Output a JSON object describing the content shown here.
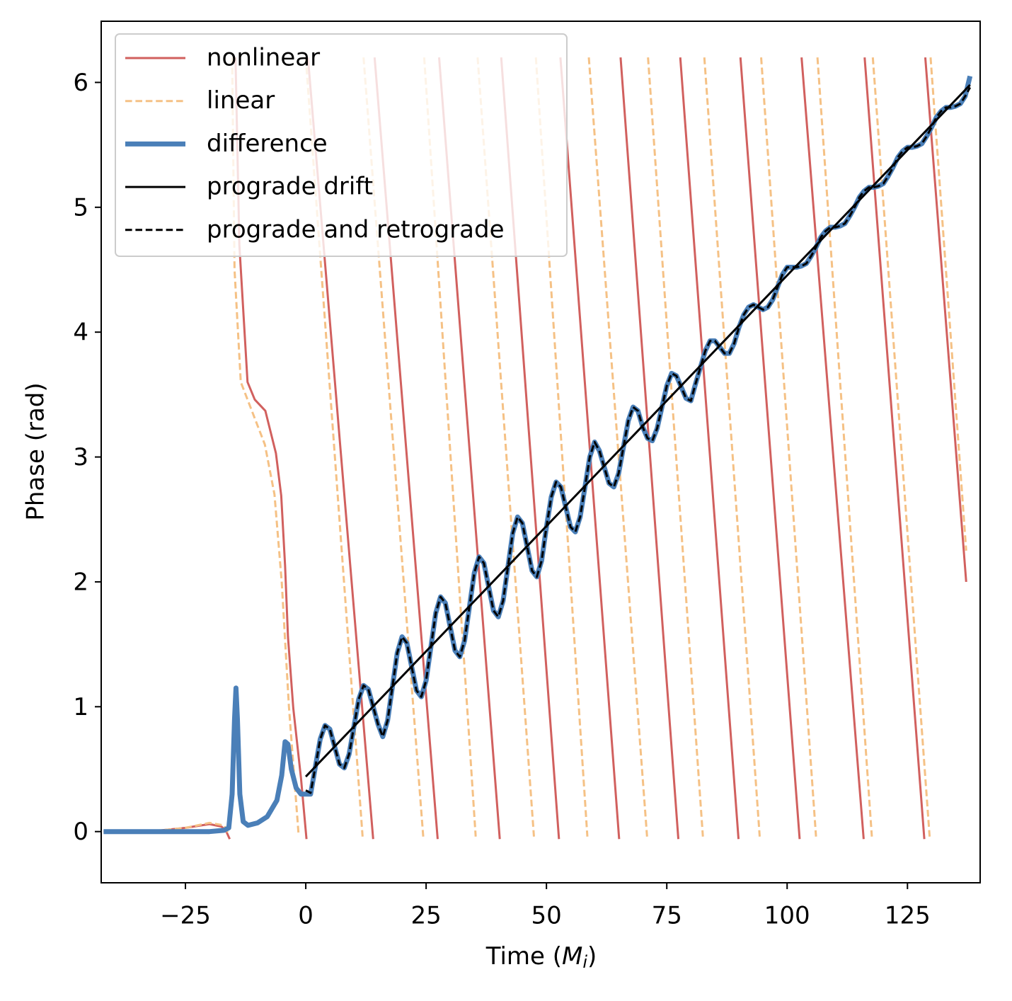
{
  "chart_data": {
    "type": "line",
    "x_label": [
      "Time (",
      "M",
      "i",
      ")"
    ],
    "y_label": "Phase (rad)",
    "xlim": [
      -42.5,
      140.1
    ],
    "ylim": [
      -0.41,
      6.49
    ],
    "xticks": [
      {
        "value": -25,
        "label": "−25"
      },
      0,
      25,
      50,
      75,
      100,
      125
    ],
    "yticks": [
      0,
      1,
      2,
      3,
      4,
      5,
      6
    ],
    "grid": false,
    "legend": "upper left",
    "series": [
      {
        "name": "nonlinear",
        "color": "#d1605e",
        "linestyle": "solid",
        "x": [
          -42,
          -30,
          -25,
          -20,
          -17.5,
          -16.5,
          -15.8,
          -15.2,
          -14.6,
          -13.8,
          -12.1,
          -10.6,
          -8.4,
          -6.2,
          -5.1,
          -4.3,
          -3.7,
          -2.6,
          -1.0,
          0.15,
          0.3,
          0.45,
          7.2,
          14.0,
          14.15,
          14.3,
          20.85,
          27.4,
          27.55,
          27.7,
          34.0,
          40.3,
          40.45,
          40.6,
          46.6,
          52.6,
          52.75,
          52.9,
          59.0,
          65.1,
          65.25,
          65.4,
          71.4,
          77.4,
          77.6,
          77.8,
          83.85,
          89.9,
          90.1,
          90.3,
          96.45,
          102.6,
          102.8,
          103.0,
          109.45,
          115.9,
          116.0,
          116.1,
          122.3,
          128.5,
          128.6,
          128.7,
          137.2
        ],
        "values": [
          0,
          0.01,
          0.03,
          0.06,
          0.04,
          0.0,
          -0.06,
          null,
          6.2,
          4.7,
          3.6,
          3.46,
          3.37,
          3.03,
          2.69,
          2.13,
          1.56,
          0.99,
          0.43,
          -0.06,
          null,
          6.2,
          3.07,
          -0.06,
          null,
          6.2,
          3.07,
          -0.06,
          null,
          6.2,
          3.07,
          -0.06,
          null,
          6.2,
          3.07,
          -0.06,
          null,
          6.2,
          3.07,
          -0.06,
          null,
          6.2,
          3.07,
          -0.06,
          null,
          6.2,
          3.07,
          -0.06,
          null,
          6.2,
          3.07,
          -0.06,
          null,
          6.2,
          3.07,
          -0.06,
          null,
          6.2,
          3.07,
          -0.06,
          null,
          6.2,
          2.0
        ]
      },
      {
        "name": "linear",
        "color": "#f5c185",
        "linestyle": "dashed",
        "x": [
          -42,
          -30,
          -25,
          -20,
          -17,
          -16,
          -15.5,
          -15.3,
          -14.8,
          -13.5,
          -11.5,
          -8.5,
          -6.5,
          -5.0,
          -3.5,
          -1.5,
          -1.1,
          0,
          5.9,
          11.8,
          11.9,
          12.0,
          18.2,
          24.4,
          24.5,
          24.6,
          29.95,
          35.3,
          35.5,
          35.7,
          41.55,
          47.4,
          47.6,
          47.8,
          53.15,
          58.5,
          58.65,
          58.8,
          64.85,
          70.9,
          71.0,
          71.1,
          76.8,
          82.5,
          82.65,
          82.8,
          88.55,
          94.3,
          94.45,
          94.6,
          100.3,
          106.0,
          106.15,
          106.3,
          111.95,
          117.6,
          117.7,
          117.8,
          123.7,
          129.6,
          129.7,
          129.8,
          137.2
        ],
        "values": [
          0,
          0.01,
          0.03,
          0.07,
          0.05,
          -0.02,
          null,
          6.2,
          4.5,
          3.6,
          3.4,
          3.1,
          2.7,
          2.0,
          1.0,
          -0.02,
          null,
          6.2,
          3.08,
          -0.04,
          null,
          6.2,
          3.08,
          -0.04,
          null,
          6.2,
          3.08,
          -0.04,
          null,
          6.2,
          3.08,
          -0.04,
          null,
          6.2,
          3.08,
          -0.04,
          null,
          6.2,
          3.08,
          -0.04,
          null,
          6.2,
          3.08,
          -0.04,
          null,
          6.2,
          3.08,
          -0.04,
          null,
          6.2,
          3.08,
          -0.04,
          null,
          6.2,
          3.08,
          -0.04,
          null,
          6.2,
          3.08,
          -0.04,
          null,
          6.2,
          2.25
        ]
      },
      {
        "name": "difference",
        "color": "#4a7fb8",
        "linestyle": "solid",
        "x": [
          -42,
          -20,
          -17,
          -16,
          -15.3,
          -14.8,
          -14.5,
          -14.2,
          -13.7,
          -13,
          -12,
          -10,
          -8,
          -6,
          -5,
          -4.3,
          -3.7,
          -3,
          -2,
          -1,
          0,
          1,
          2,
          3,
          4,
          5,
          6,
          7,
          8,
          9,
          10,
          11,
          12,
          13,
          14,
          15,
          16,
          17,
          18,
          19,
          20,
          21,
          22,
          23,
          24,
          25,
          26,
          27,
          28,
          29,
          30,
          31,
          32,
          33,
          34,
          35,
          36,
          37,
          38,
          39,
          40,
          41,
          42,
          43,
          44,
          45,
          46,
          47,
          48,
          49,
          50,
          51,
          52,
          53,
          54,
          55,
          56,
          57,
          58,
          59,
          60,
          61,
          62,
          63,
          64,
          65,
          66,
          67,
          68,
          69,
          70,
          71,
          72,
          73,
          74,
          75,
          76,
          77,
          78,
          79,
          80,
          81,
          82,
          83,
          84,
          85,
          86,
          87,
          88,
          89,
          90,
          91,
          92,
          93,
          94,
          95,
          96,
          97,
          98,
          99,
          100,
          101,
          102,
          103,
          104,
          105,
          106,
          107,
          108,
          109,
          110,
          111,
          112,
          113,
          114,
          115,
          116,
          117,
          118,
          119,
          120,
          121,
          122,
          123,
          124,
          125,
          126,
          127,
          128,
          129,
          130,
          131,
          132,
          133,
          134,
          135,
          136,
          137,
          138
        ],
        "values": [
          0,
          0,
          0.01,
          0.03,
          0.3,
          0.9,
          1.15,
          0.9,
          0.3,
          0.08,
          0.05,
          0.07,
          0.12,
          0.25,
          0.45,
          0.72,
          0.7,
          0.5,
          0.35,
          0.3,
          0.3,
          0.3,
          0.52,
          0.74,
          0.85,
          0.82,
          0.68,
          0.54,
          0.51,
          0.62,
          0.84,
          1.06,
          1.17,
          1.14,
          1.0,
          0.86,
          0.76,
          0.89,
          1.16,
          1.43,
          1.56,
          1.51,
          1.32,
          1.13,
          1.08,
          1.21,
          1.48,
          1.75,
          1.88,
          1.83,
          1.64,
          1.45,
          1.4,
          1.53,
          1.8,
          2.07,
          2.2,
          2.15,
          1.96,
          1.77,
          1.72,
          1.85,
          2.12,
          2.39,
          2.52,
          2.47,
          2.28,
          2.09,
          2.04,
          2.17,
          2.44,
          2.68,
          2.8,
          2.76,
          2.6,
          2.44,
          2.4,
          2.52,
          2.76,
          3.0,
          3.12,
          3.05,
          2.92,
          2.79,
          2.76,
          2.87,
          3.08,
          3.29,
          3.4,
          3.37,
          3.24,
          3.15,
          3.13,
          3.23,
          3.4,
          3.57,
          3.67,
          3.65,
          3.56,
          3.47,
          3.45,
          3.59,
          3.72,
          3.85,
          3.93,
          3.93,
          3.88,
          3.83,
          3.83,
          3.91,
          4.04,
          4.14,
          4.2,
          4.22,
          4.2,
          4.18,
          4.2,
          4.26,
          4.36,
          4.46,
          4.52,
          4.52,
          4.52,
          4.53,
          4.55,
          4.61,
          4.68,
          4.76,
          4.81,
          4.84,
          4.84,
          4.85,
          4.87,
          4.93,
          5.0,
          5.08,
          5.13,
          5.16,
          5.16,
          5.17,
          5.19,
          5.25,
          5.32,
          5.4,
          5.45,
          5.48,
          5.48,
          5.49,
          5.51,
          5.57,
          5.64,
          5.72,
          5.77,
          5.8,
          5.8,
          5.81,
          5.83,
          5.89,
          6.05
        ]
      },
      {
        "name": "prograde drift",
        "color": "#000000",
        "linestyle": "solid",
        "x": [
          0,
          138
        ],
        "values": [
          0.44,
          5.98
        ]
      },
      {
        "name": "prograde and retrograde",
        "color": "#000000",
        "linestyle": "dashed",
        "x": [
          0,
          1,
          2,
          3,
          4,
          5,
          6,
          7,
          8,
          9,
          10,
          11,
          12,
          13,
          14,
          15,
          16,
          17,
          18,
          19,
          20,
          21,
          22,
          23,
          24,
          25,
          26,
          27,
          28,
          29,
          30,
          31,
          32,
          33,
          34,
          35,
          36,
          37,
          38,
          39,
          40,
          41,
          42,
          43,
          44,
          45,
          46,
          47,
          48,
          49,
          50,
          51,
          52,
          53,
          54,
          55,
          56,
          57,
          58,
          59,
          60,
          61,
          62,
          63,
          64,
          65,
          66,
          67,
          68,
          69,
          70,
          71,
          72,
          73,
          74,
          75,
          76,
          77,
          78,
          79,
          80,
          81,
          82,
          83,
          84,
          85,
          86,
          87,
          88,
          89,
          90,
          91,
          92,
          93,
          94,
          95,
          96,
          97,
          98,
          99,
          100,
          101,
          102,
          103,
          104,
          105,
          106,
          107,
          108,
          109,
          110,
          111,
          112,
          113,
          114,
          115,
          116,
          117,
          118,
          119,
          120,
          121,
          122,
          123,
          124,
          125,
          126,
          127,
          128,
          129,
          130,
          131,
          132,
          133,
          134,
          135,
          136,
          137,
          138
        ],
        "values": [
          0.33,
          0.31,
          0.52,
          0.74,
          0.85,
          0.82,
          0.68,
          0.54,
          0.51,
          0.62,
          0.84,
          1.06,
          1.17,
          1.14,
          1.0,
          0.86,
          0.76,
          0.89,
          1.16,
          1.43,
          1.56,
          1.51,
          1.32,
          1.13,
          1.08,
          1.21,
          1.48,
          1.75,
          1.88,
          1.83,
          1.64,
          1.45,
          1.4,
          1.53,
          1.8,
          2.07,
          2.2,
          2.15,
          1.96,
          1.77,
          1.72,
          1.85,
          2.12,
          2.39,
          2.52,
          2.47,
          2.28,
          2.09,
          2.04,
          2.17,
          2.44,
          2.68,
          2.8,
          2.76,
          2.6,
          2.44,
          2.4,
          2.52,
          2.76,
          3.0,
          3.12,
          3.05,
          2.92,
          2.79,
          2.76,
          2.87,
          3.08,
          3.29,
          3.4,
          3.37,
          3.24,
          3.15,
          3.13,
          3.23,
          3.4,
          3.57,
          3.67,
          3.65,
          3.56,
          3.47,
          3.45,
          3.59,
          3.72,
          3.85,
          3.93,
          3.93,
          3.88,
          3.83,
          3.83,
          3.91,
          4.04,
          4.14,
          4.2,
          4.22,
          4.2,
          4.18,
          4.2,
          4.26,
          4.36,
          4.46,
          4.52,
          4.52,
          4.52,
          4.53,
          4.55,
          4.61,
          4.68,
          4.76,
          4.81,
          4.84,
          4.84,
          4.85,
          4.87,
          4.93,
          5.0,
          5.08,
          5.13,
          5.16,
          5.16,
          5.17,
          5.19,
          5.25,
          5.32,
          5.4,
          5.45,
          5.48,
          5.48,
          5.49,
          5.51,
          5.57,
          5.64,
          5.72,
          5.77,
          5.8,
          5.8,
          5.81,
          5.83,
          5.89,
          5.96
        ]
      }
    ]
  }
}
